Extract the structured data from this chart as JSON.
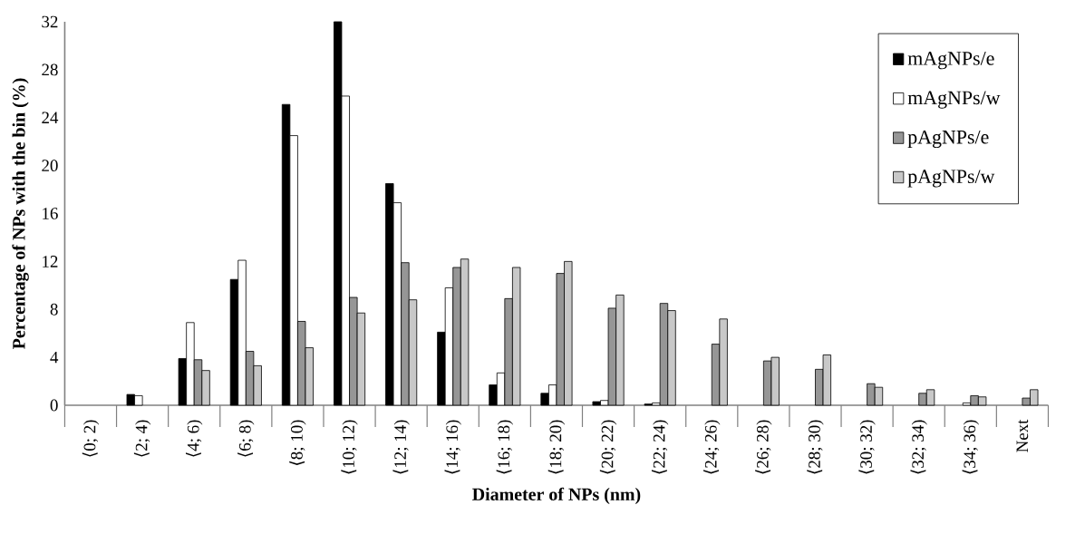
{
  "chart_data": {
    "type": "bar",
    "xlabel": "Diameter of NPs (nm)",
    "ylabel": "Percentage of NPs with the bin (%)",
    "categories": [
      "⟨0; 2)",
      "⟨2; 4)",
      "⟨4; 6)",
      "⟨6; 8)",
      "⟨8; 10)",
      "⟨10; 12)",
      "⟨12; 14)",
      "⟨14; 16)",
      "⟨16; 18)",
      "⟨18; 20)",
      "⟨20; 22)",
      "⟨22; 24)",
      "⟨24; 26)",
      "⟨26; 28)",
      "⟨28; 30)",
      "⟨30; 32)",
      "⟨32; 34)",
      "⟨34; 36)",
      "Next"
    ],
    "series": [
      {
        "name": "mAgNPs/e",
        "color": "#000000",
        "values": [
          null,
          0.9,
          3.9,
          10.5,
          25.1,
          32,
          18.5,
          6.1,
          1.7,
          1.0,
          0.3,
          0.1,
          null,
          null,
          null,
          null,
          null,
          null,
          null
        ]
      },
      {
        "name": "mAgNPs/w",
        "color": "#ffffff",
        "values": [
          null,
          0.8,
          6.9,
          12.1,
          22.5,
          25.8,
          16.9,
          9.8,
          2.7,
          1.7,
          0.4,
          0.2,
          null,
          null,
          null,
          null,
          null,
          0.2,
          null
        ]
      },
      {
        "name": "pAgNPs/e",
        "color": "#969696",
        "values": [
          null,
          null,
          3.8,
          4.5,
          7.0,
          9.0,
          11.9,
          11.5,
          8.9,
          11.0,
          8.1,
          8.5,
          5.1,
          3.7,
          3.0,
          1.8,
          1.0,
          0.8,
          0.6
        ]
      },
      {
        "name": "pAgNPs/w",
        "color": "#c8c8c8",
        "values": [
          null,
          null,
          2.9,
          3.3,
          4.8,
          7.7,
          8.8,
          12.2,
          11.5,
          12.0,
          9.2,
          7.9,
          7.2,
          4.0,
          4.2,
          1.5,
          1.3,
          0.7,
          1.3
        ]
      }
    ],
    "ylim": [
      0,
      32
    ],
    "yticks": [
      0,
      4,
      8,
      12,
      16,
      20,
      24,
      28,
      32
    ],
    "legend": "top right"
  }
}
